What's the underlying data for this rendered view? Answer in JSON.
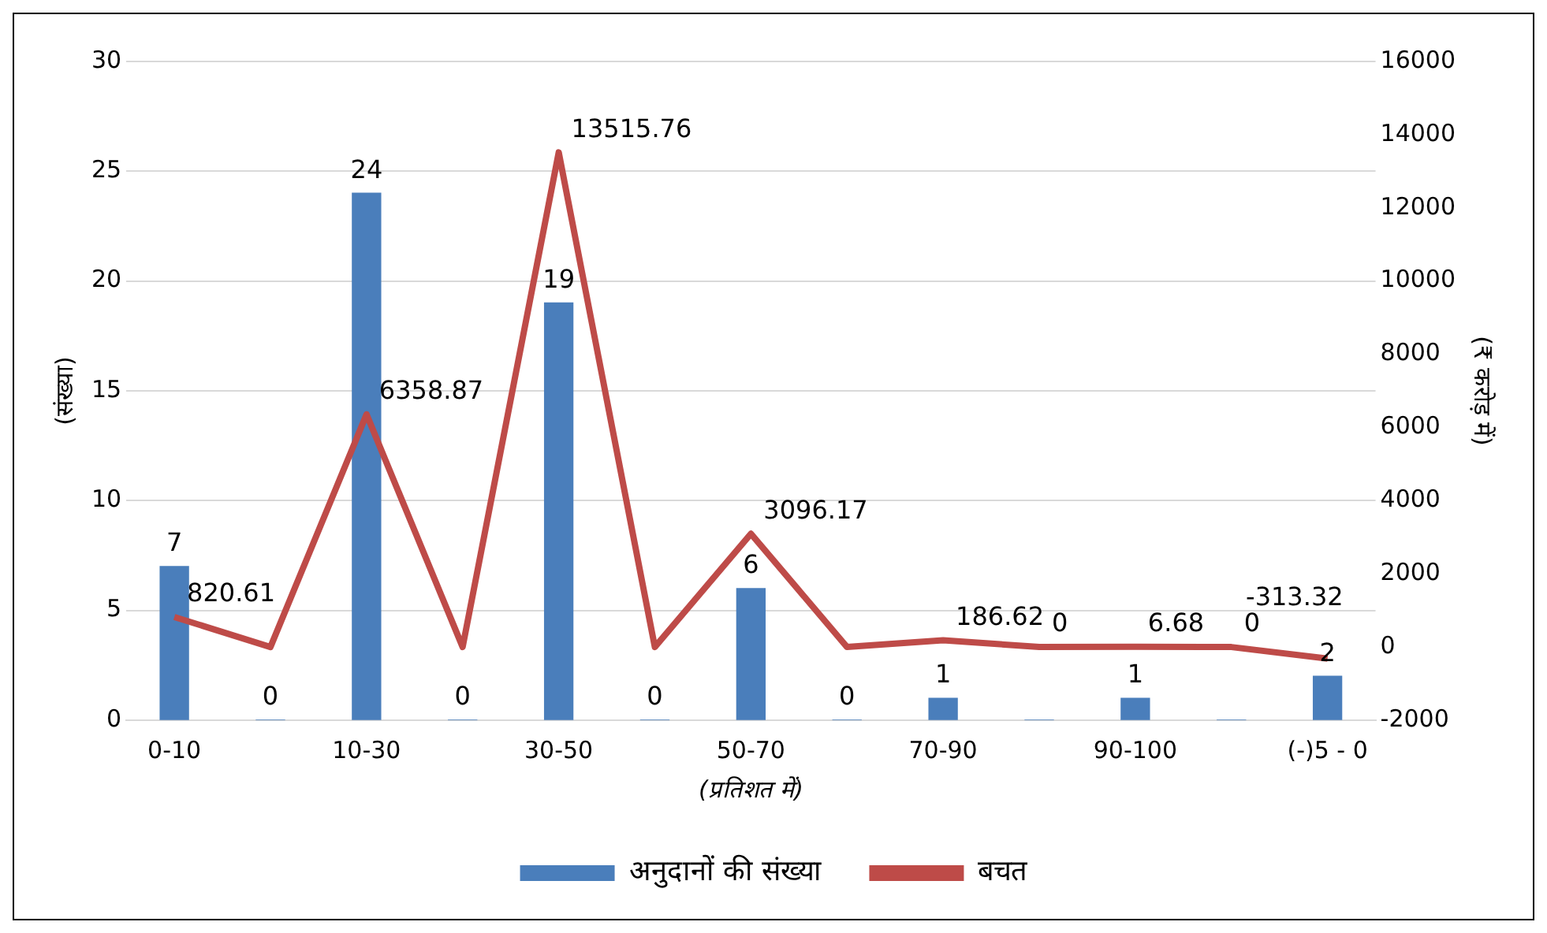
{
  "chart_data": {
    "type": "bar",
    "xlabel": "(प्रतिशत में)",
    "ylabel": "(संख्या)",
    "y2label": "(₹ करोड़ में)",
    "categories": [
      "0-10",
      null,
      "10-30",
      null,
      "30-50",
      null,
      "50-70",
      null,
      "70-90",
      null,
      "90-100",
      null,
      "(-)5 - 0"
    ],
    "series": [
      {
        "name": "अनुदानों की संख्या",
        "color": "#4a7ebb",
        "values": [
          7,
          0,
          24,
          0,
          19,
          0,
          6,
          0,
          1,
          0,
          1,
          0,
          2
        ],
        "value_labels": [
          "7",
          "0",
          "24",
          "0",
          "19",
          "0",
          "6",
          "0",
          "1",
          null,
          "1",
          null,
          "2"
        ]
      },
      {
        "name": "बचत",
        "type": "line",
        "axis": "y2",
        "color": "#be4b48",
        "values": [
          820.61,
          0,
          6358.87,
          0,
          13515.76,
          0,
          3096.17,
          0,
          186.62,
          0,
          6.68,
          0,
          -313.32
        ],
        "value_labels": [
          "820.61",
          null,
          "6358.87",
          null,
          "13515.76",
          null,
          "3096.17",
          null,
          "186.62",
          "0",
          "6.68",
          "0",
          "-313.32"
        ]
      }
    ],
    "ylim": [
      0,
      30
    ],
    "yticks": [
      0,
      5,
      10,
      15,
      20,
      25,
      30
    ],
    "y2lim": [
      -2000,
      16000
    ],
    "y2ticks": [
      -2000,
      0,
      2000,
      4000,
      6000,
      8000,
      10000,
      12000,
      14000,
      16000
    ],
    "grid": "y",
    "legend": "bottom",
    "marker": "none"
  }
}
